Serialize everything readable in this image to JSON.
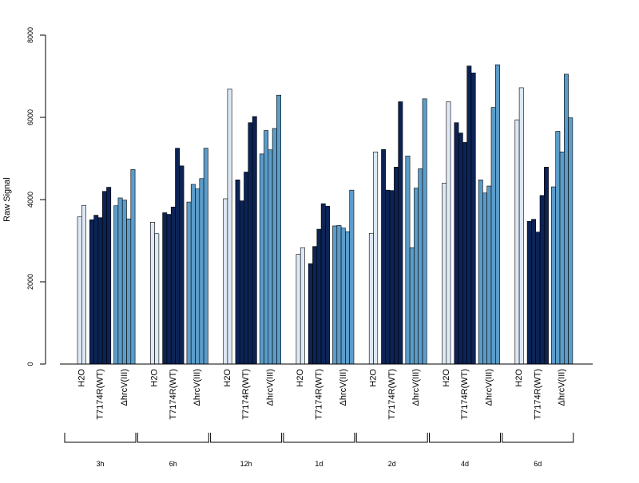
{
  "chart_data": {
    "type": "bar",
    "title": "",
    "ylabel": "Raw Signal",
    "xlabel": "",
    "ylim": [
      0,
      8000
    ],
    "yticks": [
      0,
      2000,
      4000,
      6000,
      8000
    ],
    "grid": false,
    "legend": "none",
    "bar_labels": [
      "H2O",
      "T7174R(WT)",
      "ΔhrcV(III)"
    ],
    "colors": {
      "H2O": "#dde8f5",
      "T7174R(WT)": "#0c2355",
      "ΔhrcV(III)": "#5b9cc9"
    },
    "groups": [
      {
        "name": "3h",
        "bars": [
          {
            "treatment": "H2O",
            "values": [
              3580,
              3860
            ]
          },
          {
            "treatment": "T7174R(WT)",
            "values": [
              3510,
              3620,
              3560,
              4200,
              4300
            ]
          },
          {
            "treatment": "ΔhrcV(III)",
            "values": [
              3850,
              4040,
              3990,
              3530,
              4730
            ]
          }
        ]
      },
      {
        "name": "6h",
        "bars": [
          {
            "treatment": "H2O",
            "values": [
              3450,
              3170
            ]
          },
          {
            "treatment": "T7174R(WT)",
            "values": [
              3680,
              3640,
              3820,
              5250,
              4820
            ]
          },
          {
            "treatment": "ΔhrcV(III)",
            "values": [
              3940,
              4370,
              4260,
              4510,
              5250
            ]
          }
        ]
      },
      {
        "name": "12h",
        "bars": [
          {
            "treatment": "H2O",
            "values": [
              4020,
              6690
            ]
          },
          {
            "treatment": "T7174R(WT)",
            "values": [
              4480,
              3970,
              4670,
              5870,
              6020
            ]
          },
          {
            "treatment": "ΔhrcV(III)",
            "values": [
              5110,
              5680,
              5210,
              5730,
              6540
            ]
          }
        ]
      },
      {
        "name": "1d",
        "bars": [
          {
            "treatment": "H2O",
            "values": [
              2670,
              2830
            ]
          },
          {
            "treatment": "T7174R(WT)",
            "values": [
              2440,
              2860,
              3280,
              3900,
              3840
            ]
          },
          {
            "treatment": "ΔhrcV(III)",
            "values": [
              3360,
              3370,
              3310,
              3220,
              4230
            ]
          }
        ]
      },
      {
        "name": "2d",
        "bars": [
          {
            "treatment": "H2O",
            "values": [
              3180,
              5160
            ]
          },
          {
            "treatment": "T7174R(WT)",
            "values": [
              5220,
              4230,
              4220,
              4790,
              6380
            ]
          },
          {
            "treatment": "ΔhrcV(III)",
            "values": [
              5060,
              2830,
              4280,
              4750,
              6450
            ]
          }
        ]
      },
      {
        "name": "4d",
        "bars": [
          {
            "treatment": "H2O",
            "values": [
              4400,
              6380
            ]
          },
          {
            "treatment": "T7174R(WT)",
            "values": [
              5870,
              5620,
              5390,
              7250,
              7080
            ]
          },
          {
            "treatment": "ΔhrcV(III)",
            "values": [
              4480,
              4160,
              4330,
              6240,
              7280
            ]
          }
        ]
      },
      {
        "name": "6d",
        "bars": [
          {
            "treatment": "H2O",
            "values": [
              5940,
              6720
            ]
          },
          {
            "treatment": "T7174R(WT)",
            "values": [
              3470,
              3520,
              3210,
              4100,
              4790
            ]
          },
          {
            "treatment": "ΔhrcV(III)",
            "values": [
              4310,
              5660,
              5160,
              7050,
              5990
            ]
          }
        ]
      }
    ]
  }
}
